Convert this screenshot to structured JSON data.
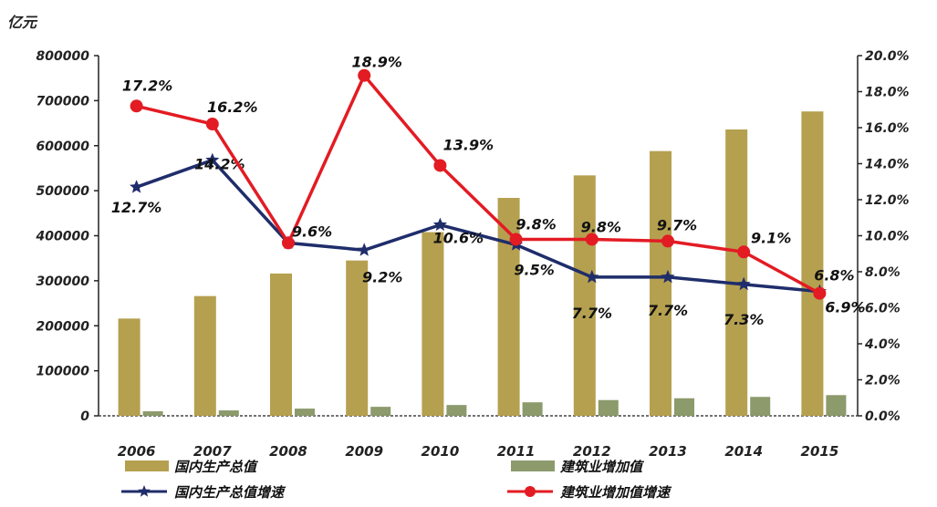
{
  "chart_data": {
    "type": "bar",
    "y_unit": "亿元",
    "categories": [
      "2006",
      "2007",
      "2008",
      "2009",
      "2010",
      "2011",
      "2012",
      "2013",
      "2014",
      "2015"
    ],
    "left_axis": {
      "ticks": [
        "0",
        "100000",
        "200000",
        "300000",
        "400000",
        "500000",
        "600000",
        "700000",
        "800000"
      ],
      "range": [
        0,
        800000
      ]
    },
    "right_axis": {
      "ticks": [
        "0.0%",
        "2.0%",
        "4.0%",
        "6.0%",
        "8.0%",
        "10.0%",
        "12.0%",
        "14.0%",
        "16.0%",
        "18.0%",
        "20.0%"
      ],
      "range": [
        0,
        20
      ]
    },
    "series": [
      {
        "name": "国内生产总值",
        "kind": "bar",
        "axis": "left",
        "color": "#b5a04f",
        "values": [
          216000,
          266000,
          316000,
          345000,
          408000,
          484000,
          534000,
          588000,
          636000,
          676000
        ]
      },
      {
        "name": "建筑业增加值",
        "kind": "bar",
        "axis": "left",
        "color": "#8c9a6c",
        "values": [
          10000,
          12000,
          16000,
          20000,
          24000,
          30000,
          35000,
          39000,
          42000,
          46000
        ]
      },
      {
        "name": "国内生产总值增速",
        "kind": "line",
        "axis": "right",
        "color": "#1f2d6b",
        "marker": "star",
        "values": [
          12.7,
          14.2,
          9.6,
          9.2,
          10.6,
          9.5,
          7.7,
          7.7,
          7.3,
          6.9
        ],
        "labels": [
          "12.7%",
          "14.2%",
          "",
          "9.2%",
          "10.6%",
          "9.5%",
          "7.7%",
          "7.7%",
          "7.3%",
          "6.9%"
        ]
      },
      {
        "name": "建筑业增加值增速",
        "kind": "line",
        "axis": "right",
        "color": "#e31b23",
        "marker": "circle",
        "values": [
          17.2,
          16.2,
          9.6,
          18.9,
          13.9,
          9.8,
          9.8,
          9.7,
          9.1,
          6.8
        ],
        "labels": [
          "17.2%",
          "16.2%",
          "9.6%",
          "18.9%",
          "13.9%",
          "9.8%",
          "9.8%",
          "9.7%",
          "9.1%",
          "6.8%"
        ]
      }
    ]
  }
}
